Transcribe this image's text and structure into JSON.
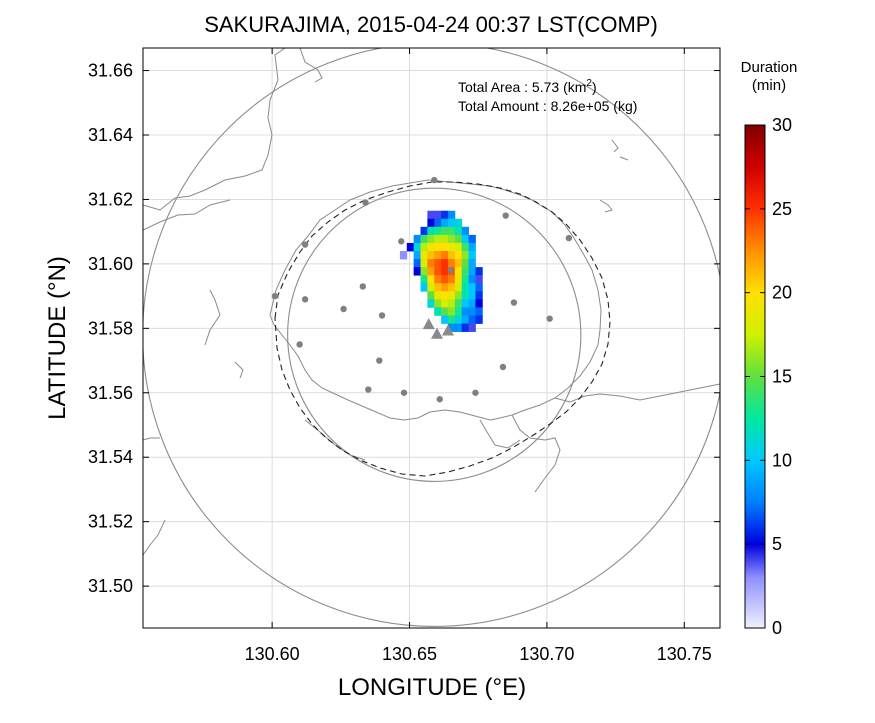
{
  "title": "SAKURAJIMA, 2015-04-24 00:37 LST(COMP)",
  "xlabel": "LONGITUDE (°E)",
  "ylabel": "LATITUDE (°N)",
  "annotations": {
    "total_area_label": "Total Area   : 5.73 (km",
    "total_area_sup": "2",
    "total_area_close": ")",
    "total_amount": "Total Amount : 8.26e+05 (kg)"
  },
  "colorbar": {
    "title_line1": "Duration",
    "title_line2": "(min)",
    "ticks": [
      0,
      5,
      10,
      15,
      20,
      25,
      30
    ],
    "range": [
      0,
      30
    ],
    "stops": [
      {
        "v": 0,
        "color": "#f0f0ff"
      },
      {
        "v": 3,
        "color": "#9090ff"
      },
      {
        "v": 5,
        "color": "#0000e0"
      },
      {
        "v": 7.5,
        "color": "#0080ff"
      },
      {
        "v": 10,
        "color": "#00c8ff"
      },
      {
        "v": 12.5,
        "color": "#00e8a0"
      },
      {
        "v": 15,
        "color": "#60e040"
      },
      {
        "v": 17.5,
        "color": "#d0f000"
      },
      {
        "v": 20,
        "color": "#ffe000"
      },
      {
        "v": 22.5,
        "color": "#ff9000"
      },
      {
        "v": 25,
        "color": "#ff3000"
      },
      {
        "v": 27.5,
        "color": "#d00000"
      },
      {
        "v": 30,
        "color": "#800000"
      }
    ]
  },
  "chart_data": {
    "type": "heatmap",
    "xlim": [
      130.553,
      130.763
    ],
    "ylim": [
      31.487,
      31.667
    ],
    "xticks": [
      "130.60",
      "130.65",
      "130.70",
      "130.75"
    ],
    "yticks": [
      "31.50",
      "31.52",
      "31.54",
      "31.56",
      "31.58",
      "31.60",
      "31.62",
      "31.64",
      "31.66"
    ],
    "grid": true,
    "circles": [
      {
        "center": [
          130.659,
          31.578
        ],
        "radius_deg_lat": 0.0905
      },
      {
        "center": [
          130.659,
          31.578
        ],
        "radius_deg_lat": 0.0455
      }
    ],
    "stations": [
      [
        130.659,
        31.626
      ],
      [
        130.634,
        31.619
      ],
      [
        130.685,
        31.615
      ],
      [
        130.612,
        31.606
      ],
      [
        130.647,
        31.607
      ],
      [
        130.708,
        31.608
      ],
      [
        130.601,
        31.59
      ],
      [
        130.612,
        31.589
      ],
      [
        130.626,
        31.586
      ],
      [
        130.633,
        31.593
      ],
      [
        130.64,
        31.584
      ],
      [
        130.688,
        31.588
      ],
      [
        130.701,
        31.583
      ],
      [
        130.61,
        31.575
      ],
      [
        130.639,
        31.57
      ],
      [
        130.684,
        31.568
      ],
      [
        130.635,
        31.561
      ],
      [
        130.648,
        31.56
      ],
      [
        130.661,
        31.558
      ],
      [
        130.674,
        31.56
      ],
      [
        130.665,
        31.598
      ]
    ],
    "vents": [
      [
        130.657,
        31.581
      ],
      [
        130.66,
        31.578
      ],
      [
        130.664,
        31.579
      ]
    ],
    "cell_size_deg": 0.0025,
    "ash_cells_origin": [
      130.6465,
      31.579
    ],
    "ash_rows": [
      "....3357........",
      "....4689A.......",
      "...5BCDDB7......",
      "..7DFGGFE96.....",
      ".4AGIJJIHD8.....",
      "2.8IKLMKJF9.....",
      "..6HMNOMKE8.....",
      "..4FLNONJD85....",
      "...CJMNMIC73....",
      "...9HKLKHB96....",
      "....EIJIFB95....",
      "....AFHGD984....",
      ".....BEFC776....",
      "......9CA865....",
      ".......7753....."
    ]
  }
}
